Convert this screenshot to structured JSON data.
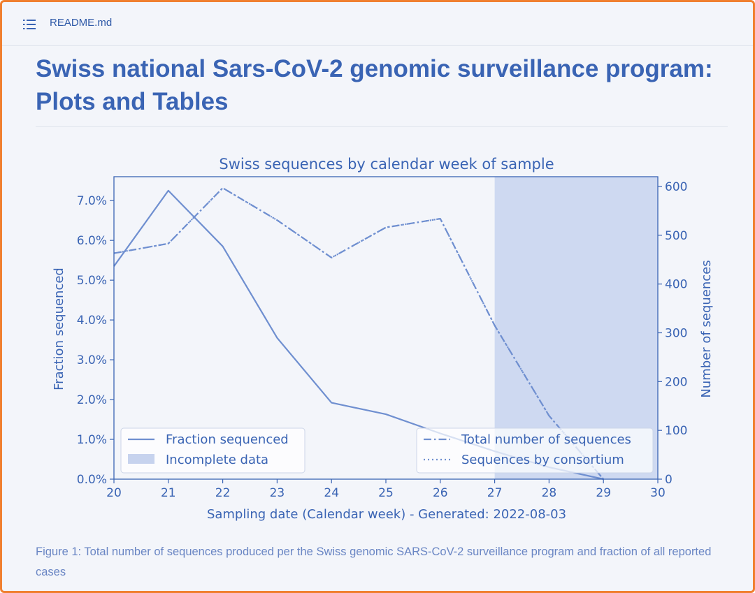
{
  "header": {
    "toc_icon": "list-icon",
    "filename": "README.md"
  },
  "page": {
    "title": "Swiss national Sars-CoV-2 genomic surveillance program: Plots and Tables",
    "caption": "Figure 1: Total number of sequences produced per the Swiss genomic SARS-CoV-2 surveillance program and fraction of all reported cases"
  },
  "colors": {
    "accent": "#3a64b4",
    "line": "#6f8fd0",
    "shade": "#c7d3ee",
    "border": "#f08030"
  },
  "chart_data": {
    "type": "line",
    "title": "Swiss sequences by calendar week of sample",
    "xlabel": "Sampling date (Calendar week) - Generated: 2022-08-03",
    "ylabel": "Fraction sequenced",
    "y2label": "Number of sequences",
    "x": [
      20,
      21,
      22,
      23,
      24,
      25,
      26,
      27,
      28,
      29,
      30
    ],
    "xlim": [
      20,
      30
    ],
    "ylim": [
      0,
      7.6
    ],
    "y2lim": [
      0,
      620
    ],
    "xticks": [
      "20",
      "21",
      "22",
      "23",
      "24",
      "25",
      "26",
      "27",
      "28",
      "29",
      "30"
    ],
    "yticks": [
      {
        "value": 0,
        "label": "0.0%"
      },
      {
        "value": 1,
        "label": "1.0%"
      },
      {
        "value": 2,
        "label": "2.0%"
      },
      {
        "value": 3,
        "label": "3.0%"
      },
      {
        "value": 4,
        "label": "4.0%"
      },
      {
        "value": 5,
        "label": "5.0%"
      },
      {
        "value": 6,
        "label": "6.0%"
      },
      {
        "value": 7,
        "label": "7.0%"
      }
    ],
    "y2ticks": [
      {
        "value": 0,
        "label": "0"
      },
      {
        "value": 100,
        "label": "100"
      },
      {
        "value": 200,
        "label": "200"
      },
      {
        "value": 300,
        "label": "300"
      },
      {
        "value": 400,
        "label": "400"
      },
      {
        "value": 500,
        "label": "500"
      },
      {
        "value": 600,
        "label": "600"
      }
    ],
    "series": [
      {
        "name": "Fraction sequenced",
        "axis": "left",
        "style": "solid",
        "x": [
          20,
          21,
          22,
          23,
          24,
          25,
          26,
          27,
          28,
          29
        ],
        "values": [
          5.35,
          7.25,
          5.85,
          3.55,
          1.92,
          1.63,
          1.15,
          0.7,
          0.3,
          0.0
        ]
      },
      {
        "name": "Total number of sequences",
        "axis": "right",
        "style": "dashdot",
        "x": [
          20,
          21,
          22,
          23,
          24,
          25,
          26,
          27,
          28,
          29
        ],
        "values": [
          463,
          483,
          597,
          531,
          454,
          516,
          534,
          315,
          130,
          0
        ]
      },
      {
        "name": "Sequences by consortium",
        "axis": "right",
        "style": "dotted",
        "x": [
          20,
          21,
          22,
          23,
          24,
          25,
          26,
          27,
          28,
          29
        ],
        "values": [
          463,
          483,
          597,
          531,
          454,
          516,
          534,
          315,
          130,
          0
        ]
      }
    ],
    "shaded_region": {
      "name": "Incomplete data",
      "x_start": 27,
      "x_end": 30
    },
    "legend_left": [
      "Fraction sequenced",
      "Incomplete data"
    ],
    "legend_right": [
      "Total number of sequences",
      "Sequences by consortium"
    ]
  }
}
